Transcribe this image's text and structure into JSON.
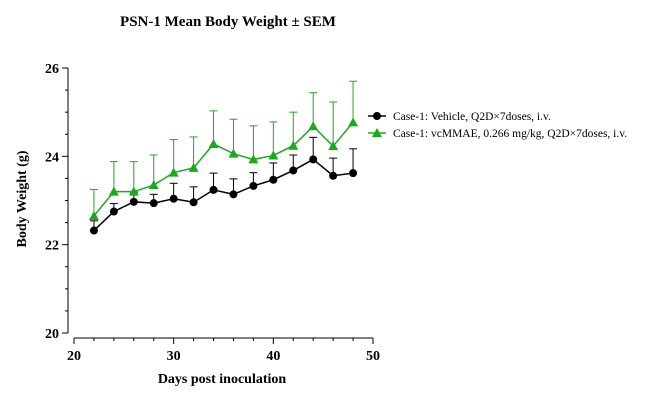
{
  "chart_data": {
    "type": "line",
    "title": "PSN-1 Mean Body Weight ± SEM",
    "xlabel": "Days post inoculation",
    "ylabel": "Body Weight (g)",
    "xlim": [
      20,
      50
    ],
    "ylim": [
      20,
      26
    ],
    "xticks": [
      "20",
      "30",
      "40",
      "50"
    ],
    "yticks": [
      "20",
      "22",
      "24",
      "26"
    ],
    "grid": false,
    "legend_position": "right",
    "x": [
      22,
      24,
      26,
      28,
      30,
      32,
      34,
      36,
      38,
      40,
      42,
      44,
      46,
      48
    ],
    "series": [
      {
        "name": "Case-1: Vehicle, Q2D×7doses, i.v.",
        "color": "#000000",
        "marker": "circle",
        "values": [
          22.32,
          22.75,
          22.97,
          22.94,
          23.04,
          22.96,
          23.24,
          23.14,
          23.33,
          23.47,
          23.68,
          23.93,
          23.56,
          23.62
        ],
        "sem": [
          0.22,
          0.18,
          0.22,
          0.2,
          0.35,
          0.35,
          0.38,
          0.35,
          0.3,
          0.38,
          0.35,
          0.5,
          0.4,
          0.55
        ]
      },
      {
        "name": "Case-1: vcMMAE, 0.266 mg/kg, Q2D×7doses, i.v.",
        "color": "#1ea81e",
        "marker": "triangle",
        "values": [
          22.65,
          23.2,
          23.2,
          23.35,
          23.63,
          23.74,
          24.28,
          24.06,
          23.93,
          24.02,
          24.24,
          24.68,
          24.23,
          24.77
        ],
        "sem": [
          0.6,
          0.68,
          0.68,
          0.68,
          0.75,
          0.7,
          0.75,
          0.78,
          0.76,
          0.76,
          0.76,
          0.76,
          1.0,
          0.93
        ]
      }
    ]
  }
}
